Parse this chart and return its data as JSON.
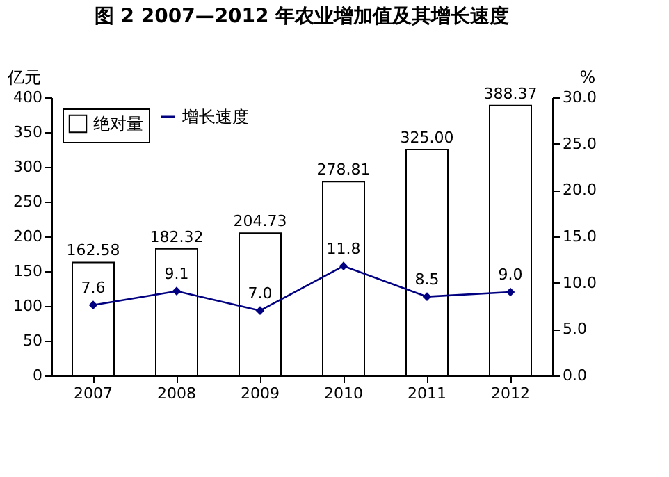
{
  "chart_data": {
    "type": "bar",
    "title": "图 2   2007—2012 年农业增加值及其增长速度",
    "ylabel": "亿元",
    "y2label": "%",
    "categories": [
      "2007",
      "2008",
      "2009",
      "2010",
      "2011",
      "2012"
    ],
    "series": [
      {
        "name": "绝对量",
        "color": "#ffffff",
        "values": [
          162.58,
          182.32,
          204.73,
          278.81,
          325.0,
          388.37
        ],
        "value_labels": [
          "162.58",
          "182.32",
          "204.73",
          "278.81",
          "325.00",
          "388.37"
        ]
      },
      {
        "name": "增长速度",
        "type": "line",
        "axis": "y2",
        "color": "#000080",
        "marker": "diamond",
        "values": [
          7.6,
          9.1,
          7.0,
          11.8,
          8.5,
          9.0
        ],
        "value_labels": [
          "7.6",
          "9.1",
          "7.0",
          "11.8",
          "8.5",
          "9.0"
        ]
      }
    ],
    "ylim": [
      0,
      400
    ],
    "yticks": [
      0,
      50,
      100,
      150,
      200,
      250,
      300,
      350,
      400
    ],
    "y2lim": [
      0,
      30
    ],
    "y2ticks": [
      {
        "value": 0,
        "label": "0.0"
      },
      {
        "value": 5,
        "label": "5.0"
      },
      {
        "value": 10,
        "label": "10.0"
      },
      {
        "value": 15,
        "label": "15.0"
      },
      {
        "value": 20,
        "label": "20.0"
      },
      {
        "value": 25,
        "label": "25.0"
      },
      {
        "value": 30,
        "label": "30.0"
      }
    ],
    "legend": "top left",
    "grid": false
  }
}
